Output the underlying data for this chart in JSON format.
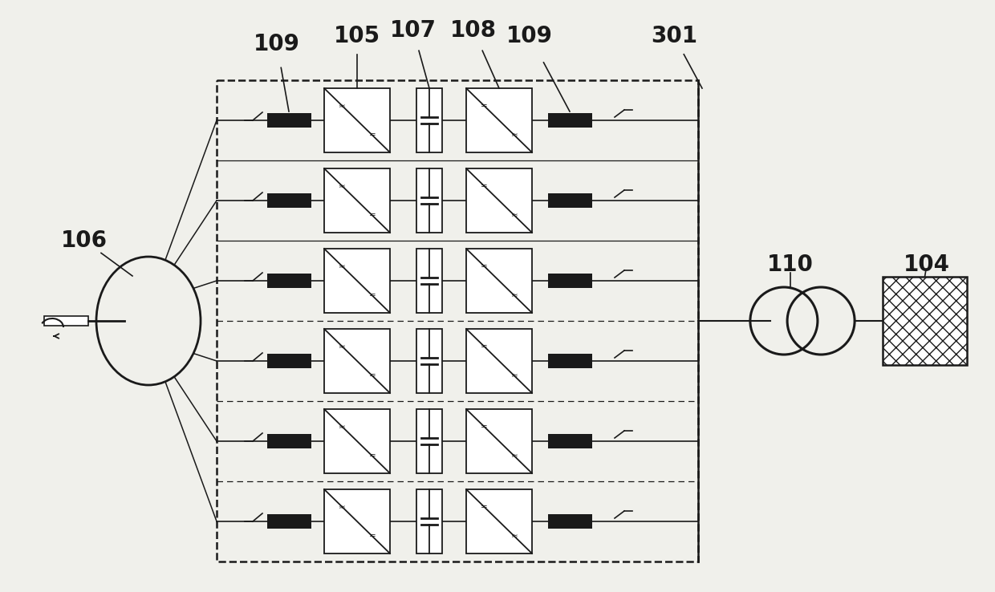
{
  "bg_color": "#f0f0eb",
  "line_color": "#1a1a1a",
  "n_rows": 6,
  "figsize": [
    12.4,
    7.38
  ],
  "dpi": 100
}
